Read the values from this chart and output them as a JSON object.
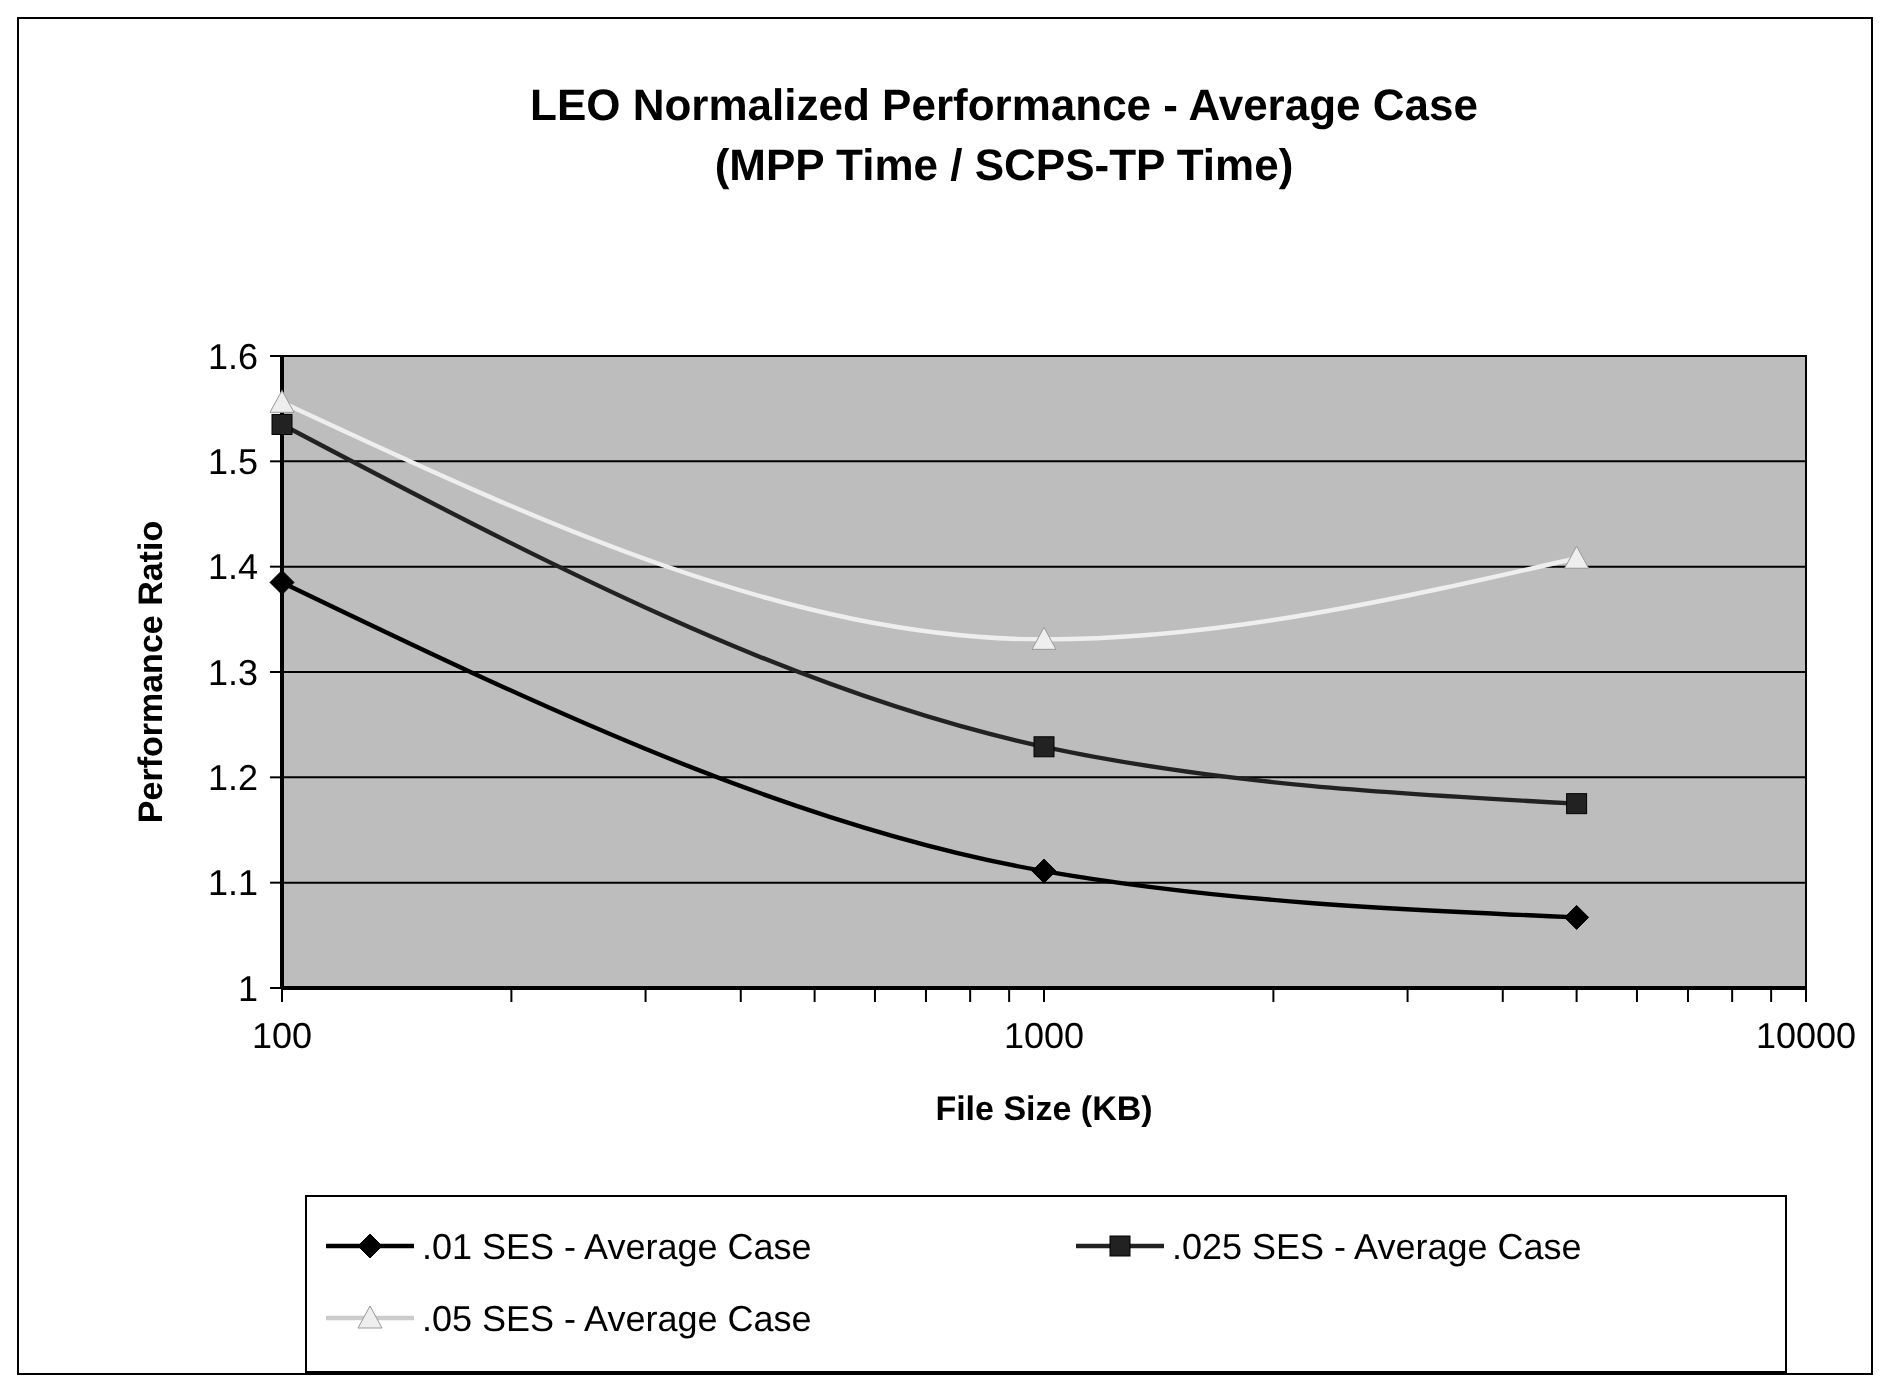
{
  "chart_data": {
    "type": "line",
    "title": "LEO Normalized Performance - Average Case\n(MPP Time / SCPS-TP Time)",
    "xlabel": "File Size (KB)",
    "ylabel": "Performance Ratio",
    "x": [
      100,
      1000,
      5000
    ],
    "log": "x",
    "xlim": [
      100,
      10000
    ],
    "xticks": [
      100,
      {
        "value": 200,
        "label": null
      },
      {
        "value": 300,
        "label": null
      },
      {
        "value": 400,
        "label": null
      },
      {
        "value": 500,
        "label": null
      },
      {
        "value": 600,
        "label": null
      },
      {
        "value": 700,
        "label": null
      },
      {
        "value": 800,
        "label": null
      },
      {
        "value": 900,
        "label": null
      },
      1000,
      {
        "value": 2000,
        "label": null
      },
      {
        "value": 3000,
        "label": null
      },
      {
        "value": 4000,
        "label": null
      },
      {
        "value": 5000,
        "label": null
      },
      {
        "value": 6000,
        "label": null
      },
      {
        "value": 7000,
        "label": null
      },
      {
        "value": 8000,
        "label": null
      },
      {
        "value": 9000,
        "label": null
      },
      10000
    ],
    "ylim": [
      1,
      1.6
    ],
    "yticks": [
      1,
      1.1,
      1.2,
      1.3,
      1.4,
      1.5,
      1.6
    ],
    "grid": "y",
    "legend": "bottom",
    "series": [
      {
        "name": ".01 SES - Average Case",
        "color": "#000000",
        "marker": "diamond",
        "values": [
          1.385,
          1.111,
          1.067
        ]
      },
      {
        "name": ".025 SES - Average Case",
        "color": "#222222",
        "marker": "square",
        "values": [
          1.535,
          1.229,
          1.175
        ]
      },
      {
        "name": ".05 SES - Average Case",
        "color": "#eeeeee",
        "marker": "triangle",
        "values": [
          1.556,
          1.331,
          1.408
        ]
      }
    ]
  }
}
